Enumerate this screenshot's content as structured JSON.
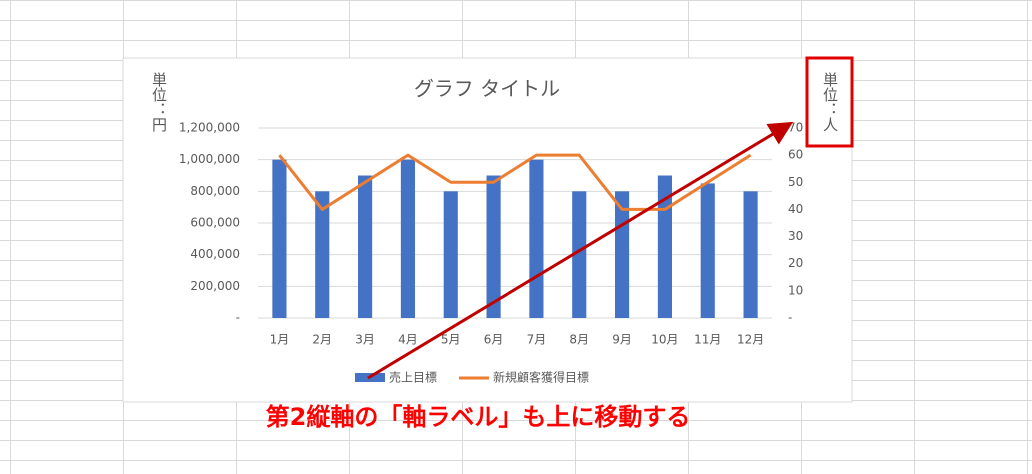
{
  "chart_data": {
    "type": "bar",
    "title": "グラフ タイトル",
    "y_axis_title": "単位：円",
    "y2_axis_title": "単位：人",
    "categories": [
      "1月",
      "2月",
      "3月",
      "4月",
      "5月",
      "6月",
      "7月",
      "8月",
      "9月",
      "10月",
      "11月",
      "12月"
    ],
    "series": [
      {
        "name": "売上目標",
        "type": "bar",
        "color": "#4472c4",
        "values": [
          1000000,
          800000,
          900000,
          1000000,
          800000,
          900000,
          1000000,
          800000,
          800000,
          900000,
          850000,
          800000
        ]
      },
      {
        "name": "新規顧客獲得目標",
        "type": "line",
        "axis": "y2",
        "color": "#ed7d31",
        "values": [
          60,
          40,
          50,
          60,
          50,
          50,
          60,
          60,
          40,
          40,
          50,
          60
        ]
      }
    ],
    "ylim": [
      0,
      1200000
    ],
    "yticks": [
      {
        "value": 0,
        "label": "-"
      },
      {
        "value": 200000,
        "label": "200,000"
      },
      {
        "value": 400000,
        "label": "400,000"
      },
      {
        "value": 600000,
        "label": "600,000"
      },
      {
        "value": 800000,
        "label": "800,000"
      },
      {
        "value": 1000000,
        "label": "1,000,000"
      },
      {
        "value": 1200000,
        "label": "1,200,000"
      }
    ],
    "y2lim": [
      0,
      70
    ],
    "y2ticks": [
      {
        "value": 0,
        "label": "-"
      },
      10,
      20,
      30,
      40,
      50,
      60,
      70
    ],
    "grid": true,
    "legend": "bottom",
    "annotation": "第2縦軸の「軸ラベル」も上に移動する"
  }
}
